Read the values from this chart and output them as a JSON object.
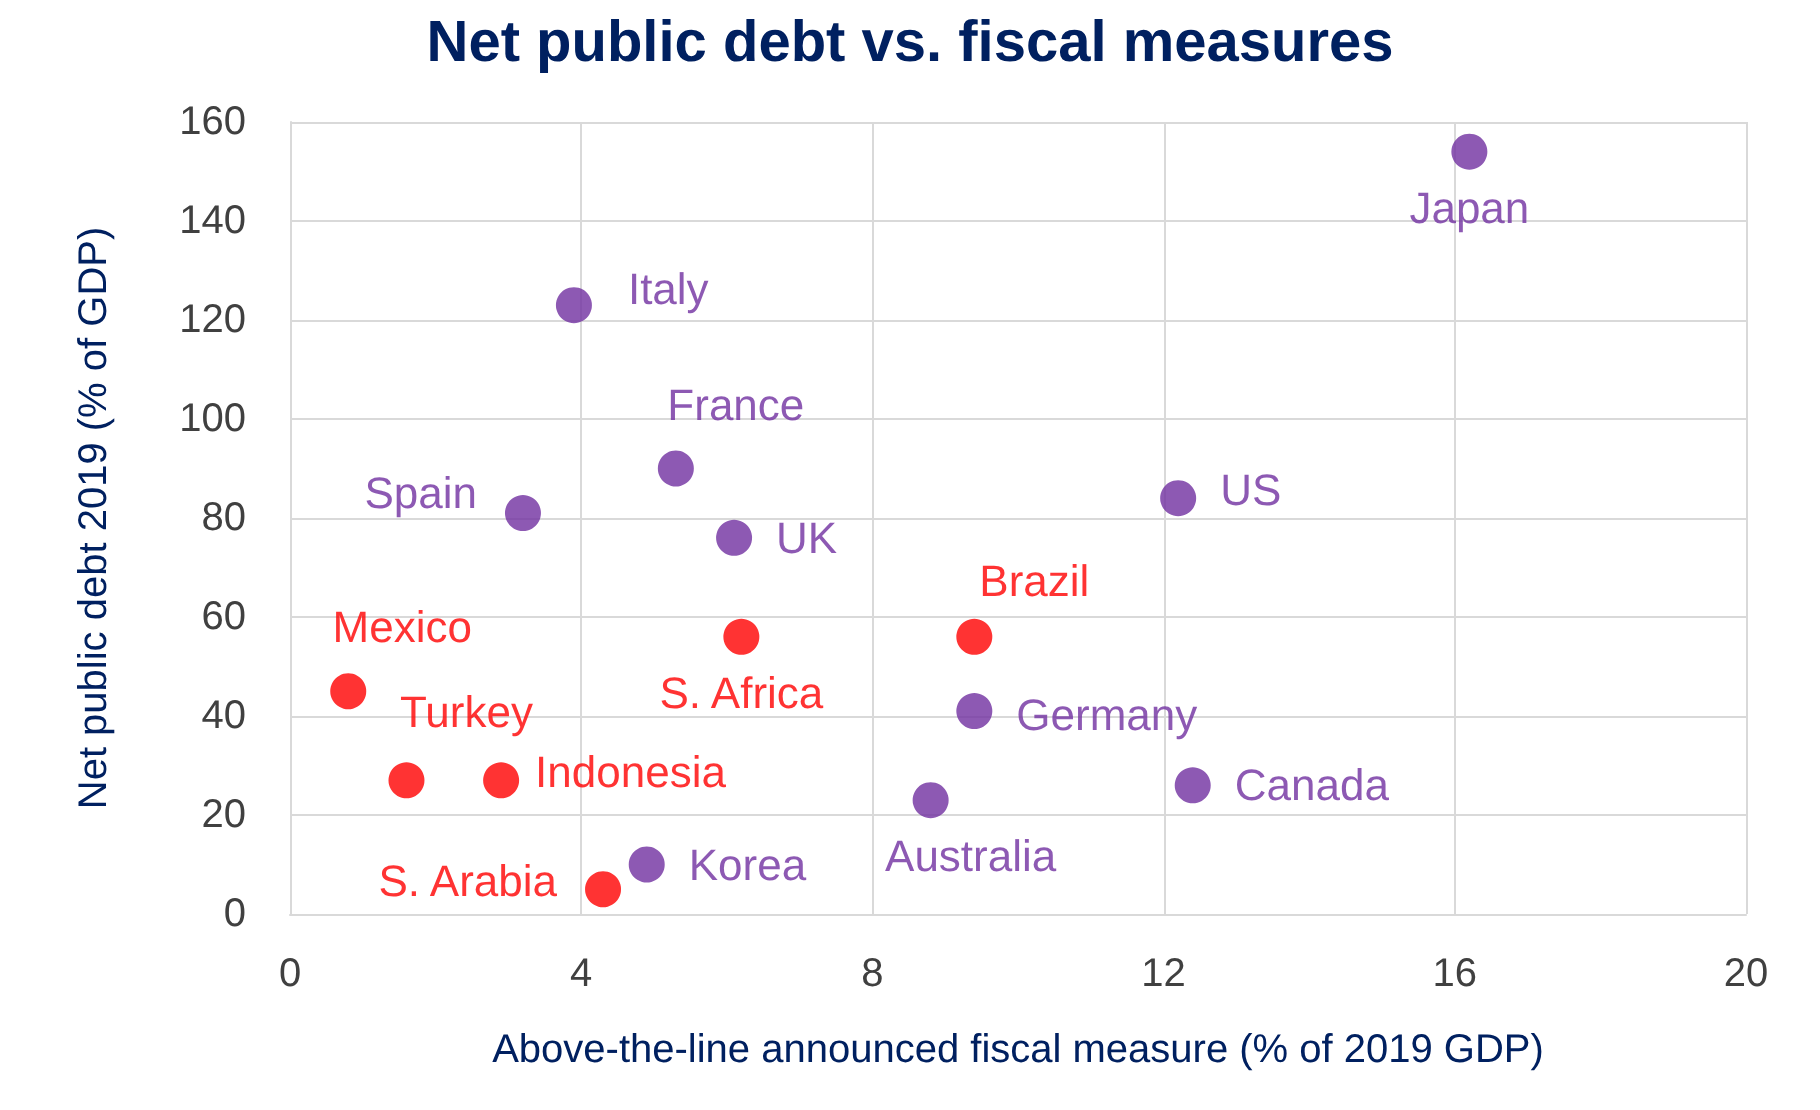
{
  "chart_data": {
    "type": "scatter",
    "title": "Net public debt vs. fiscal measures",
    "xlabel": "Above-the-line announced fiscal measure (% of 2019 GDP)",
    "ylabel": "Net public debt 2019 (% of GDP)",
    "series": [
      {
        "color": "#7030a0",
        "x": [
          16.2,
          3.9,
          3.2,
          5.3,
          6.1,
          12.2,
          9.4,
          12.4,
          8.8,
          4.9
        ],
        "values": [
          154,
          123,
          81,
          90,
          76,
          84,
          41,
          26,
          23,
          10
        ],
        "value_labels": [
          "Japan",
          "Italy",
          "Spain",
          "France",
          "UK",
          "US",
          "Germany",
          "Canada",
          "Australia",
          "Korea"
        ]
      },
      {
        "color": "#ff0000",
        "x": [
          9.4,
          6.2,
          0.8,
          1.6,
          2.9,
          4.3
        ],
        "values": [
          56,
          56,
          45,
          27,
          27,
          5
        ],
        "value_labels": [
          "Brazil",
          "S. Africa",
          "Mexico",
          "Turkey",
          "Indonesia",
          "S. Arabia"
        ]
      }
    ],
    "xlim": [
      0,
      20
    ],
    "xticks": [
      0,
      4,
      8,
      12,
      16,
      20
    ],
    "ylim": [
      0,
      160
    ],
    "yticks": [
      0,
      20,
      40,
      60,
      80,
      100,
      120,
      140,
      160
    ],
    "grid": true,
    "marker": "circle"
  }
}
